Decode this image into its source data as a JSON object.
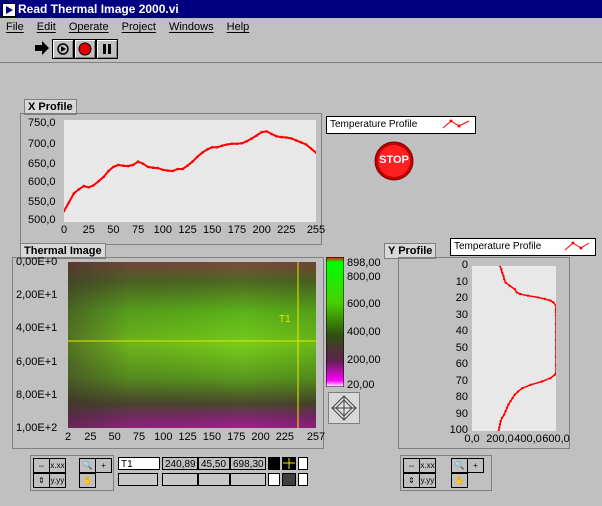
{
  "window": {
    "title": "Read Thermal Image 2000.vi"
  },
  "menu": [
    "File",
    "Edit",
    "Operate",
    "Project",
    "Windows",
    "Help"
  ],
  "toolbar": [
    "run-arrow-icon",
    "run-continuous-icon",
    "abort-icon",
    "pause-icon"
  ],
  "x_profile": {
    "label": "X Profile",
    "legend": "Temperature  Profile",
    "y_ticks": [
      "750,0",
      "700,0",
      "650,0",
      "600,0",
      "550,0",
      "500,0"
    ],
    "x_ticks": [
      "0",
      "25",
      "50",
      "75",
      "100",
      "125",
      "150",
      "175",
      "200",
      "225",
      "255"
    ]
  },
  "stop_button": {
    "label": "STOP"
  },
  "thermal_image": {
    "label": "Thermal Image",
    "y_ticks": [
      "0,00E+0",
      "2,00E+1",
      "4,00E+1",
      "6,00E+1",
      "8,00E+1",
      "1,00E+2"
    ],
    "x_ticks": [
      "2",
      "25",
      "50",
      "75",
      "100",
      "125",
      "150",
      "175",
      "200",
      "225",
      "257"
    ],
    "cursor_label": "T1",
    "colorbar_ticks": [
      "898,00",
      "800,00",
      "600,00",
      "400,00",
      "200,00",
      "20,00"
    ]
  },
  "y_profile": {
    "label": "Y Profile",
    "legend": "Temperature Profile",
    "y_ticks": [
      "0",
      "10",
      "20",
      "30",
      "40",
      "50",
      "60",
      "70",
      "80",
      "90",
      "100"
    ],
    "x_ticks": [
      "0,0",
      "200,0",
      "400,0",
      "600,0"
    ]
  },
  "cursor_readout": {
    "name": "T1",
    "x": "240,89",
    "y": "45,50",
    "value": "698,30"
  },
  "colors": {
    "titlebar": "#000080",
    "trace": "#ff0000",
    "cursor": "#e8e800",
    "plot_bg": "#e8e8e8"
  },
  "chart_data": [
    {
      "type": "line",
      "title": "X Profile",
      "series": [
        {
          "name": "Temperature  Profile",
          "x": [
            0,
            5,
            10,
            15,
            20,
            25,
            30,
            35,
            40,
            45,
            50,
            55,
            60,
            65,
            70,
            75,
            80,
            85,
            90,
            95,
            100,
            105,
            110,
            115,
            120,
            125,
            130,
            135,
            140,
            145,
            150,
            155,
            160,
            165,
            170,
            175,
            180,
            185,
            190,
            195,
            200,
            205,
            210,
            215,
            220,
            225,
            230,
            235,
            240,
            245,
            250,
            255
          ],
          "values": [
            527,
            548,
            570,
            580,
            588,
            585,
            590,
            600,
            610,
            625,
            635,
            640,
            638,
            637,
            640,
            648,
            643,
            635,
            633,
            632,
            628,
            626,
            625,
            630,
            630,
            638,
            648,
            660,
            670,
            678,
            683,
            683,
            687,
            690,
            692,
            692,
            693,
            698,
            705,
            712,
            720,
            722,
            716,
            710,
            708,
            707,
            705,
            700,
            695,
            690,
            680,
            670
          ]
        }
      ],
      "xlim": [
        0,
        255
      ],
      "ylim": [
        500,
        750
      ]
    },
    {
      "type": "line",
      "title": "Y Profile",
      "series": [
        {
          "name": "Temperature Profile",
          "y": [
            0,
            2,
            4,
            6,
            8,
            10,
            12,
            14,
            16,
            17,
            18,
            19,
            20,
            21,
            22,
            24,
            26,
            27,
            28,
            30,
            35,
            40,
            45,
            50,
            55,
            60,
            65,
            66,
            68,
            70,
            72,
            74,
            76,
            78,
            80,
            82,
            84,
            86,
            88,
            90,
            92,
            94,
            96,
            98,
            100
          ],
          "values": [
            200,
            210,
            215,
            225,
            230,
            240,
            270,
            305,
            320,
            345,
            400,
            470,
            520,
            560,
            580,
            600,
            600,
            600,
            600,
            600,
            600,
            600,
            600,
            600,
            600,
            600,
            600,
            590,
            560,
            500,
            420,
            360,
            330,
            305,
            290,
            275,
            260,
            250,
            240,
            230,
            215,
            205,
            200,
            195,
            190
          ]
        }
      ],
      "xlim": [
        0,
        600
      ],
      "ylim": [
        0,
        100
      ]
    }
  ]
}
